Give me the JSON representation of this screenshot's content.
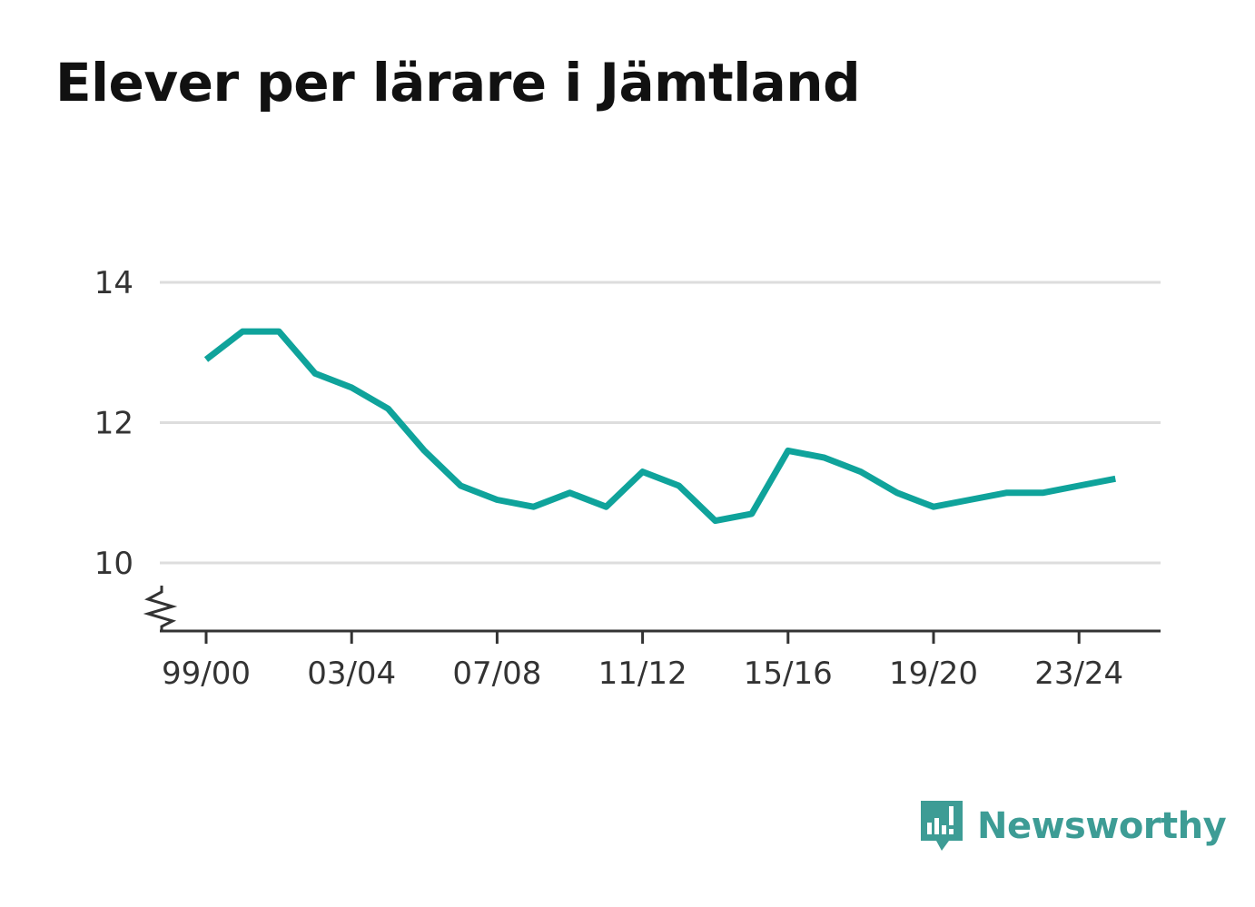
{
  "title": "Elever per lärare i Jämtland",
  "brand": {
    "name": "Newsworthy",
    "color": "#3d9c95",
    "icon": "bar-chart-speech-bubble-icon"
  },
  "chart_data": {
    "type": "line",
    "title": "Elever per lärare i Jämtland",
    "xlabel": "",
    "ylabel": "",
    "ylim": [
      9,
      14
    ],
    "y_ticks": [
      10,
      12,
      14
    ],
    "y_axis_break": true,
    "grid": true,
    "x_tick_labels": [
      "99/00",
      "03/04",
      "07/08",
      "11/12",
      "15/16",
      "19/20",
      "23/24"
    ],
    "x": [
      "99/00",
      "00/01",
      "01/02",
      "02/03",
      "03/04",
      "04/05",
      "05/06",
      "06/07",
      "07/08",
      "08/09",
      "09/10",
      "10/11",
      "11/12",
      "12/13",
      "13/14",
      "14/15",
      "15/16",
      "16/17",
      "17/18",
      "18/19",
      "19/20",
      "20/21",
      "21/22",
      "22/23",
      "23/24",
      "24/25"
    ],
    "series": [
      {
        "color": "#0fa39b",
        "values": [
          12.9,
          13.3,
          13.3,
          12.7,
          12.5,
          12.2,
          11.6,
          11.1,
          10.9,
          10.8,
          11.0,
          10.8,
          11.3,
          11.1,
          10.6,
          10.7,
          11.6,
          11.5,
          11.3,
          11.0,
          10.8,
          10.9,
          11.0,
          11.0,
          11.1,
          11.2
        ]
      }
    ]
  }
}
